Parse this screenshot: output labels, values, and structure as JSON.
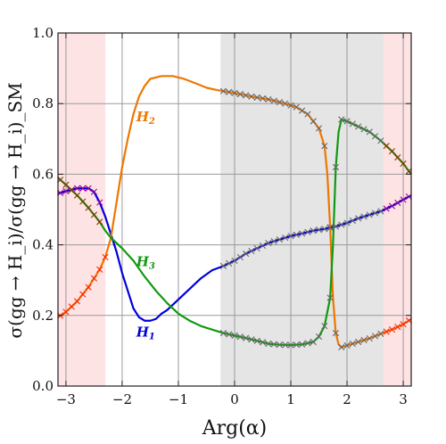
{
  "chart_data": {
    "type": "line",
    "xlabel": "Arg(α)",
    "ylabel": "σ(gg → H_i)/σ(gg → H_i)_SM",
    "xlim": [
      -3.1416,
      3.1416
    ],
    "ylim": [
      0.0,
      1.0
    ],
    "x_ticks": [
      -3,
      -2,
      -1,
      0,
      1,
      2,
      3
    ],
    "y_ticks": [
      0.0,
      0.2,
      0.4,
      0.6,
      0.8,
      1.0
    ],
    "grid": true,
    "shaded_regions": [
      {
        "x_from": -3.1416,
        "x_to": -2.3,
        "color": "#fde3e3"
      },
      {
        "x_from": -0.25,
        "x_to": 2.65,
        "color": "#e5e5e5"
      },
      {
        "x_from": 2.65,
        "x_to": 3.1416,
        "color": "#fde3e3"
      }
    ],
    "series": [
      {
        "name": "H1",
        "color": "#0000dd",
        "points": [
          [
            -3.1416,
            0.545
          ],
          [
            -3.0,
            0.552
          ],
          [
            -2.8,
            0.56
          ],
          [
            -2.6,
            0.56
          ],
          [
            -2.5,
            0.55
          ],
          [
            -2.4,
            0.52
          ],
          [
            -2.3,
            0.48
          ],
          [
            -2.2,
            0.43
          ],
          [
            -2.1,
            0.38
          ],
          [
            -2.0,
            0.32
          ],
          [
            -1.9,
            0.27
          ],
          [
            -1.8,
            0.22
          ],
          [
            -1.7,
            0.195
          ],
          [
            -1.6,
            0.185
          ],
          [
            -1.5,
            0.185
          ],
          [
            -1.4,
            0.19
          ],
          [
            -1.3,
            0.205
          ],
          [
            -1.2,
            0.215
          ],
          [
            -1.0,
            0.245
          ],
          [
            -0.8,
            0.275
          ],
          [
            -0.6,
            0.305
          ],
          [
            -0.4,
            0.328
          ],
          [
            -0.2,
            0.34
          ],
          [
            0.0,
            0.355
          ],
          [
            0.2,
            0.375
          ],
          [
            0.4,
            0.39
          ],
          [
            0.6,
            0.405
          ],
          [
            0.8,
            0.415
          ],
          [
            1.0,
            0.425
          ],
          [
            1.2,
            0.432
          ],
          [
            1.4,
            0.44
          ],
          [
            1.6,
            0.445
          ],
          [
            1.8,
            0.452
          ],
          [
            2.0,
            0.462
          ],
          [
            2.2,
            0.475
          ],
          [
            2.4,
            0.485
          ],
          [
            2.6,
            0.495
          ],
          [
            2.8,
            0.51
          ],
          [
            3.0,
            0.528
          ],
          [
            3.1416,
            0.54
          ]
        ]
      },
      {
        "name": "H2",
        "color": "#ee7700",
        "points": [
          [
            -3.1416,
            0.195
          ],
          [
            -3.0,
            0.21
          ],
          [
            -2.8,
            0.24
          ],
          [
            -2.6,
            0.28
          ],
          [
            -2.4,
            0.33
          ],
          [
            -2.3,
            0.365
          ],
          [
            -2.2,
            0.42
          ],
          [
            -2.1,
            0.52
          ],
          [
            -2.0,
            0.62
          ],
          [
            -1.9,
            0.7
          ],
          [
            -1.8,
            0.77
          ],
          [
            -1.7,
            0.82
          ],
          [
            -1.6,
            0.85
          ],
          [
            -1.5,
            0.87
          ],
          [
            -1.3,
            0.878
          ],
          [
            -1.1,
            0.878
          ],
          [
            -0.9,
            0.87
          ],
          [
            -0.7,
            0.858
          ],
          [
            -0.5,
            0.845
          ],
          [
            -0.3,
            0.838
          ],
          [
            0.0,
            0.83
          ],
          [
            0.3,
            0.82
          ],
          [
            0.6,
            0.812
          ],
          [
            0.9,
            0.8
          ],
          [
            1.1,
            0.79
          ],
          [
            1.3,
            0.77
          ],
          [
            1.5,
            0.73
          ],
          [
            1.6,
            0.68
          ],
          [
            1.65,
            0.6
          ],
          [
            1.7,
            0.45
          ],
          [
            1.75,
            0.25
          ],
          [
            1.8,
            0.15
          ],
          [
            1.85,
            0.118
          ],
          [
            1.9,
            0.11
          ],
          [
            2.0,
            0.115
          ],
          [
            2.2,
            0.125
          ],
          [
            2.4,
            0.135
          ],
          [
            2.6,
            0.148
          ],
          [
            2.8,
            0.16
          ],
          [
            3.0,
            0.175
          ],
          [
            3.1416,
            0.19
          ]
        ]
      },
      {
        "name": "H3",
        "color": "#119911",
        "points": [
          [
            -3.1416,
            0.59
          ],
          [
            -3.0,
            0.57
          ],
          [
            -2.8,
            0.54
          ],
          [
            -2.6,
            0.505
          ],
          [
            -2.4,
            0.465
          ],
          [
            -2.3,
            0.44
          ],
          [
            -2.2,
            0.42
          ],
          [
            -2.0,
            0.39
          ],
          [
            -1.8,
            0.355
          ],
          [
            -1.6,
            0.31
          ],
          [
            -1.4,
            0.27
          ],
          [
            -1.2,
            0.235
          ],
          [
            -1.0,
            0.205
          ],
          [
            -0.8,
            0.185
          ],
          [
            -0.6,
            0.17
          ],
          [
            -0.4,
            0.16
          ],
          [
            -0.2,
            0.15
          ],
          [
            0.0,
            0.143
          ],
          [
            0.2,
            0.136
          ],
          [
            0.4,
            0.128
          ],
          [
            0.6,
            0.12
          ],
          [
            0.8,
            0.117
          ],
          [
            1.0,
            0.116
          ],
          [
            1.2,
            0.118
          ],
          [
            1.4,
            0.125
          ],
          [
            1.5,
            0.14
          ],
          [
            1.6,
            0.17
          ],
          [
            1.7,
            0.25
          ],
          [
            1.75,
            0.4
          ],
          [
            1.8,
            0.62
          ],
          [
            1.85,
            0.72
          ],
          [
            1.9,
            0.755
          ],
          [
            2.0,
            0.75
          ],
          [
            2.2,
            0.735
          ],
          [
            2.4,
            0.72
          ],
          [
            2.6,
            0.695
          ],
          [
            2.8,
            0.665
          ],
          [
            3.0,
            0.63
          ],
          [
            3.1416,
            0.6
          ]
        ]
      }
    ],
    "marker_points": [
      {
        "series": "H1",
        "color": "#990099",
        "x": [
          -3.1,
          -3.0,
          -2.9,
          -2.8,
          -2.7,
          -2.6,
          -2.5,
          -2.4,
          2.7,
          2.8,
          2.9,
          3.0,
          3.1
        ]
      },
      {
        "series": "H2",
        "color": "#ff2200",
        "x": [
          -3.1,
          -3.0,
          -2.9,
          -2.8,
          -2.7,
          -2.6,
          -2.5,
          -2.4,
          -2.3,
          2.7,
          2.8,
          2.9,
          3.0,
          3.1
        ]
      },
      {
        "series": "H3",
        "color": "#8b3300",
        "x": [
          -3.1,
          -3.0,
          -2.9,
          -2.8,
          -2.7,
          -2.6,
          -2.5,
          -2.4,
          2.7,
          2.8,
          2.9,
          3.0,
          3.1
        ]
      },
      {
        "series": "H1",
        "color": "#666666",
        "x": [
          -0.2,
          -0.1,
          0.0,
          0.1,
          0.2,
          0.3,
          0.4,
          0.5,
          0.6,
          0.7,
          0.8,
          0.9,
          1.0,
          1.1,
          1.2,
          1.3,
          1.4,
          1.5,
          1.6,
          1.7,
          1.8,
          1.9,
          2.0,
          2.1,
          2.2,
          2.3,
          2.4,
          2.5,
          2.6
        ]
      },
      {
        "series": "H2",
        "color": "#666666",
        "x": [
          -0.2,
          -0.1,
          0.0,
          0.1,
          0.2,
          0.3,
          0.4,
          0.5,
          0.6,
          0.7,
          0.8,
          0.9,
          1.0,
          1.1,
          1.2,
          1.3,
          1.4,
          1.5,
          1.6,
          1.7,
          1.8,
          1.9,
          2.0,
          2.1,
          2.2,
          2.3,
          2.4,
          2.5,
          2.6
        ]
      },
      {
        "series": "H3",
        "color": "#666666",
        "x": [
          -0.2,
          -0.1,
          0.0,
          0.1,
          0.2,
          0.3,
          0.4,
          0.5,
          0.6,
          0.7,
          0.8,
          0.9,
          1.0,
          1.1,
          1.2,
          1.3,
          1.4,
          1.5,
          1.6,
          1.7,
          1.8,
          1.9,
          2.0,
          2.1,
          2.2,
          2.3,
          2.4,
          2.5,
          2.6
        ]
      }
    ],
    "annotations": [
      {
        "text": "H",
        "sub": "1",
        "x": -1.75,
        "y": 0.14,
        "color": "#0000dd"
      },
      {
        "text": "H",
        "sub": "2",
        "x": -1.75,
        "y": 0.75,
        "color": "#ee7700"
      },
      {
        "text": "H",
        "sub": "3",
        "x": -1.75,
        "y": 0.34,
        "color": "#119911"
      }
    ]
  }
}
